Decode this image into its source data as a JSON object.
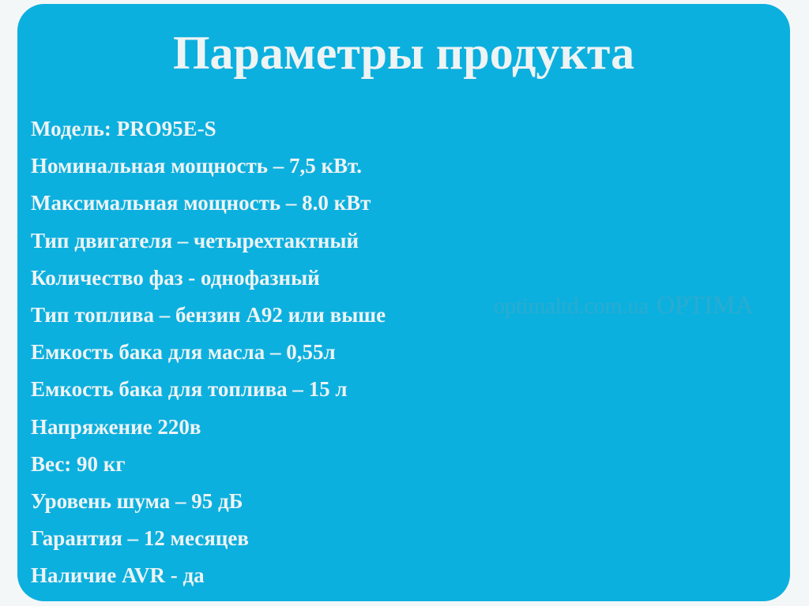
{
  "title": "Параметры продукта",
  "specs": [
    "Модель: PRO95E-S",
    "Номинальная мощность – 7,5 кВт.",
    "Максимальная мощность – 8.0 кВт",
    "Тип двигателя – четырехтактный",
    "Количество фаз - однофазный",
    "Тип топлива – бензин А92 или выше",
    "Емкость бака для масла – 0,55л",
    "Емкость бака для топлива – 15 л",
    "Напряжение 220в",
    "Вес: 90 кг",
    "Уровень шума – 95 дБ",
    "Гарантия – 12 месяцев",
    "Наличие AVR - да"
  ],
  "watermark": {
    "site": "optimaltd.com.ua",
    "brand": "OPTIMA"
  },
  "colors": {
    "card": "#0cb0de",
    "text": "#eef3f4"
  }
}
